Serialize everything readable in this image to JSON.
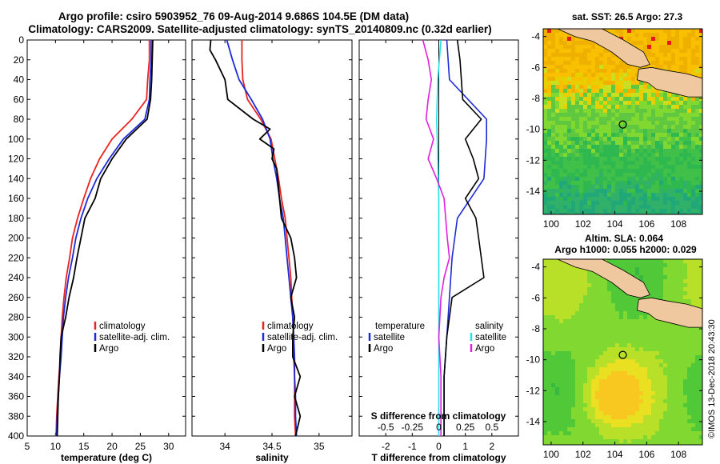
{
  "title": {
    "line1": "Argo profile: csiro 5903952_76 09-Aug-2014 9.686S 104.5E (DM data)",
    "line2": "Climatology: CARS2009. Satellite-adjusted climatology: synTS_20140809.nc (0.32d earlier)"
  },
  "footer": "©IMOS 13-Dec-2018 20:43:30",
  "colors": {
    "climatology": "#e8221e",
    "satellite": "#1c2bd6",
    "argo": "#000000",
    "sal_diff": "#e020e0",
    "sat_diff": "#22e0e8"
  },
  "chart_data": [
    {
      "type": "line",
      "name": "temperature",
      "xlabel": "temperature (deg C)",
      "ylabel": "depth",
      "xlim": [
        5,
        33
      ],
      "ylim": [
        0,
        400
      ],
      "xticks": [
        "5",
        "10",
        "15",
        "20",
        "25",
        "30"
      ],
      "yticks": [
        "0",
        "20",
        "40",
        "60",
        "80",
        "100",
        "120",
        "140",
        "160",
        "180",
        "200",
        "220",
        "240",
        "260",
        "280",
        "300",
        "320",
        "340",
        "360",
        "380",
        "400"
      ],
      "legend": [
        "climatology",
        "satellite-adj. clim.",
        "Argo"
      ],
      "series": [
        {
          "name": "climatology",
          "depth": [
            0,
            20,
            40,
            60,
            80,
            100,
            120,
            140,
            160,
            180,
            200,
            220,
            240,
            260,
            280,
            300,
            320,
            340,
            360,
            380,
            400
          ],
          "values": [
            26.6,
            26.6,
            26.3,
            26.1,
            23.5,
            20.0,
            17.8,
            16.2,
            15.0,
            13.9,
            13.0,
            12.5,
            11.9,
            11.5,
            11.2,
            11.0,
            10.9,
            10.6,
            10.4,
            10.2,
            10.1
          ]
        },
        {
          "name": "satellite-adj. clim.",
          "depth": [
            0,
            20,
            40,
            60,
            80,
            100,
            120,
            140,
            160,
            180,
            200,
            220,
            240,
            260,
            280,
            300,
            320,
            340,
            360,
            380,
            400
          ],
          "values": [
            26.9,
            26.9,
            26.7,
            26.6,
            25.8,
            22.0,
            19.5,
            17.3,
            15.7,
            14.5,
            13.6,
            13.0,
            12.3,
            11.8,
            11.4,
            11.2,
            11.0,
            10.7,
            10.5,
            10.3,
            10.2
          ]
        },
        {
          "name": "Argo",
          "depth": [
            0,
            20,
            40,
            60,
            80,
            100,
            120,
            140,
            160,
            180,
            200,
            220,
            240,
            260,
            280,
            300,
            320,
            340,
            360,
            380,
            400
          ],
          "values": [
            27.2,
            27.1,
            27.0,
            26.8,
            26.2,
            22.5,
            20.0,
            18.0,
            17.0,
            15.2,
            14.5,
            13.8,
            13.2,
            12.4,
            11.8,
            11.0,
            10.8,
            10.7,
            10.5,
            10.4,
            10.3
          ]
        }
      ]
    },
    {
      "type": "line",
      "name": "salinity",
      "xlabel": "salinity",
      "ylabel": "depth",
      "xlim": [
        33.65,
        35.35
      ],
      "ylim": [
        0,
        400
      ],
      "xticks": [
        "34",
        "34.5",
        "35"
      ],
      "legend": [
        "climatology",
        "satellite-adj. clim.",
        "Argo"
      ],
      "series": [
        {
          "name": "climatology",
          "depth": [
            0,
            20,
            40,
            60,
            80,
            100,
            120,
            140,
            160,
            180,
            200,
            220,
            240,
            260,
            280,
            300,
            320,
            340,
            360,
            380,
            400
          ],
          "values": [
            34.18,
            34.18,
            34.19,
            34.24,
            34.38,
            34.49,
            34.53,
            34.57,
            34.6,
            34.64,
            34.66,
            34.68,
            34.7,
            34.71,
            34.72,
            34.73,
            34.73,
            34.74,
            34.74,
            34.74,
            34.75
          ]
        },
        {
          "name": "satellite-adj. clim.",
          "depth": [
            0,
            20,
            40,
            60,
            80,
            100,
            120,
            140,
            160,
            180,
            200,
            220,
            240,
            260,
            280,
            300,
            320,
            340,
            360,
            380,
            400
          ],
          "values": [
            34.02,
            34.08,
            34.15,
            34.28,
            34.4,
            34.48,
            34.51,
            34.55,
            34.58,
            34.62,
            34.64,
            34.66,
            34.68,
            34.7,
            34.72,
            34.73,
            34.74,
            34.74,
            34.75,
            34.75,
            34.76
          ]
        },
        {
          "name": "Argo",
          "depth": [
            0,
            10,
            20,
            40,
            60,
            80,
            90,
            100,
            110,
            120,
            130,
            140,
            160,
            180,
            200,
            220,
            240,
            260,
            280,
            300,
            320,
            340,
            360,
            380,
            400
          ],
          "values": [
            33.85,
            33.84,
            33.9,
            34.0,
            34.03,
            34.3,
            34.48,
            34.37,
            34.52,
            34.5,
            34.55,
            34.56,
            34.58,
            34.6,
            34.7,
            34.74,
            34.76,
            34.7,
            34.74,
            34.72,
            34.72,
            34.8,
            34.74,
            34.8,
            34.75
          ]
        }
      ]
    },
    {
      "type": "line",
      "name": "difference",
      "xlabel": "T difference from climatology",
      "xlabel2": "S difference from climatology",
      "xlim": [
        -3,
        3
      ],
      "ylim": [
        0,
        400
      ],
      "xticks": [
        "-2",
        "-1",
        "0",
        "1",
        "2"
      ],
      "xticks2": [
        "-0.5",
        "-0.25",
        "0",
        "0.25",
        "0.5"
      ],
      "legend_left_title": "temperature",
      "legend_right_title": "salinity",
      "legend": [
        "satellite",
        "Argo"
      ],
      "series": [
        {
          "name": "temperature satellite",
          "depth": [
            0,
            40,
            80,
            100,
            140,
            180,
            220,
            260,
            300,
            340,
            400
          ],
          "values": [
            0.3,
            0.4,
            1.8,
            1.8,
            1.7,
            0.7,
            0.5,
            0.4,
            0.3,
            0.2,
            0.2
          ]
        },
        {
          "name": "temperature Argo",
          "depth": [
            0,
            20,
            60,
            80,
            100,
            120,
            140,
            160,
            180,
            200,
            220,
            240,
            260,
            300,
            340,
            400
          ],
          "values": [
            0.7,
            0.8,
            0.9,
            1.6,
            1.0,
            1.3,
            1.5,
            1.0,
            1.4,
            1.5,
            1.6,
            1.7,
            0.5,
            0.3,
            0.2,
            0.2
          ]
        },
        {
          "name": "salinity satellite",
          "depth": [
            0,
            40,
            80,
            120,
            160,
            200,
            240,
            280,
            320,
            360,
            400
          ],
          "values": [
            0.02,
            -0.01,
            -0.02,
            -0.01,
            0.0,
            0.0,
            0.0,
            0.0,
            0.0,
            0.0,
            0.0
          ]
        },
        {
          "name": "salinity Argo",
          "depth": [
            0,
            20,
            40,
            60,
            80,
            100,
            120,
            140,
            160,
            200,
            220,
            240,
            260,
            300,
            340,
            400
          ],
          "values": [
            -0.15,
            -0.1,
            -0.07,
            -0.1,
            -0.12,
            -0.05,
            -0.1,
            -0.02,
            0.05,
            0.08,
            0.1,
            0.05,
            0.02,
            0.0,
            0.02,
            0.02
          ]
        }
      ]
    },
    {
      "type": "heatmap",
      "name": "sst-map",
      "title": "sat. SST: 26.5 Argo: 27.3",
      "xlim": [
        99.5,
        109.5
      ],
      "ylim": [
        -15.5,
        -3.5
      ],
      "xticks": [
        "100",
        "102",
        "104",
        "106",
        "108"
      ],
      "yticks": [
        "-4",
        "-6",
        "-8",
        "-10",
        "-12",
        "-14"
      ],
      "marker": {
        "lon": 104.5,
        "lat": -9.686
      }
    },
    {
      "type": "heatmap",
      "name": "sla-map",
      "title": "Altim. SLA: 0.064",
      "subtitle": "Argo h1000: 0.055 h2000: 0.029",
      "xlim": [
        99.5,
        109.5
      ],
      "ylim": [
        -15.5,
        -3.5
      ],
      "xticks": [
        "100",
        "102",
        "104",
        "106",
        "108"
      ],
      "yticks": [
        "-4",
        "-6",
        "-8",
        "-10",
        "-12",
        "-14"
      ],
      "marker": {
        "lon": 104.5,
        "lat": -9.686
      }
    }
  ]
}
